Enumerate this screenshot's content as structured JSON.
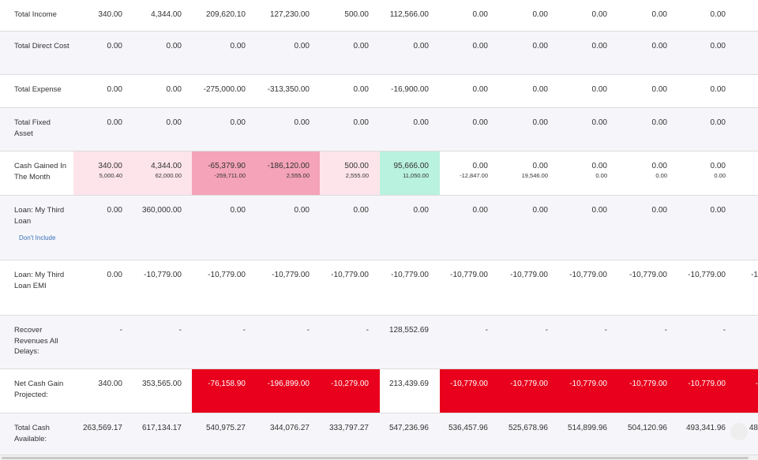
{
  "colors": {
    "shade_row": "#f6f6fa",
    "light_pink": "#fde4ea",
    "medium_pink": "#f4a3b8",
    "mint": "#b9f2de",
    "red": "#e8001c",
    "white": "#ffffff"
  },
  "rows": [
    {
      "id": "total-income",
      "label": "Total Income",
      "shade": false,
      "cells": [
        {
          "value": "340.00"
        },
        {
          "value": "4,344.00"
        },
        {
          "value": "209,620.10"
        },
        {
          "value": "127,230.00"
        },
        {
          "value": "500.00"
        },
        {
          "value": "112,566.00"
        },
        {
          "value": "0.00"
        },
        {
          "value": "0.00"
        },
        {
          "value": "0.00"
        },
        {
          "value": "0.00"
        },
        {
          "value": "0.00"
        }
      ]
    },
    {
      "id": "total-direct-cost",
      "label": "Total Direct Cost",
      "shade": true,
      "cells": [
        {
          "value": "0.00"
        },
        {
          "value": "0.00"
        },
        {
          "value": "0.00"
        },
        {
          "value": "0.00"
        },
        {
          "value": "0.00"
        },
        {
          "value": "0.00"
        },
        {
          "value": "0.00"
        },
        {
          "value": "0.00"
        },
        {
          "value": "0.00"
        },
        {
          "value": "0.00"
        },
        {
          "value": "0.00"
        }
      ]
    },
    {
      "id": "total-expense",
      "label": "Total Expense",
      "shade": false,
      "cells": [
        {
          "value": "0.00"
        },
        {
          "value": "0.00"
        },
        {
          "value": "-275,000.00"
        },
        {
          "value": "-313,350.00"
        },
        {
          "value": "0.00"
        },
        {
          "value": "-16,900.00"
        },
        {
          "value": "0.00"
        },
        {
          "value": "0.00"
        },
        {
          "value": "0.00"
        },
        {
          "value": "0.00"
        },
        {
          "value": "0.00"
        }
      ]
    },
    {
      "id": "total-fixed-asset",
      "label": "Total Fixed Asset",
      "shade": true,
      "cells": [
        {
          "value": "0.00"
        },
        {
          "value": "0.00"
        },
        {
          "value": "0.00"
        },
        {
          "value": "0.00"
        },
        {
          "value": "0.00"
        },
        {
          "value": "0.00"
        },
        {
          "value": "0.00"
        },
        {
          "value": "0.00"
        },
        {
          "value": "0.00"
        },
        {
          "value": "0.00"
        },
        {
          "value": "0.00"
        }
      ]
    },
    {
      "id": "cash-gained",
      "label": "Cash Gained In The Month",
      "shade": false,
      "cells": [
        {
          "value": "340.00",
          "sub": "5,000.40",
          "bg": "light_pink"
        },
        {
          "value": "4,344.00",
          "sub": "62,000.00",
          "bg": "light_pink"
        },
        {
          "value": "-65,379.90",
          "sub": "-259,711.00",
          "bg": "medium_pink"
        },
        {
          "value": "-186,120.00",
          "sub": "2,555.00",
          "bg": "medium_pink"
        },
        {
          "value": "500.00",
          "sub": "2,555.00",
          "bg": "light_pink"
        },
        {
          "value": "95,666.00",
          "sub": "11,050.00",
          "bg": "mint"
        },
        {
          "value": "0.00",
          "sub": "-12,847.00"
        },
        {
          "value": "0.00",
          "sub": "19,546.00"
        },
        {
          "value": "0.00",
          "sub": "0.00"
        },
        {
          "value": "0.00",
          "sub": "0.00"
        },
        {
          "value": "0.00",
          "sub": "0.00"
        }
      ]
    },
    {
      "id": "loan-my-third-loan",
      "label": "Loan: My Third Loan",
      "shade": true,
      "link": "Don't Include",
      "cells": [
        {
          "value": "0.00"
        },
        {
          "value": "360,000.00"
        },
        {
          "value": "0.00"
        },
        {
          "value": "0.00"
        },
        {
          "value": "0.00"
        },
        {
          "value": "0.00"
        },
        {
          "value": "0.00"
        },
        {
          "value": "0.00"
        },
        {
          "value": "0.00"
        },
        {
          "value": "0.00"
        },
        {
          "value": "0.00"
        }
      ]
    },
    {
      "id": "loan-emi",
      "label": "Loan: My Third Loan EMI",
      "shade": false,
      "cells": [
        {
          "value": "0.00"
        },
        {
          "value": "-10,779.00"
        },
        {
          "value": "-10,779.00"
        },
        {
          "value": "-10,779.00"
        },
        {
          "value": "-10,779.00"
        },
        {
          "value": "-10,779.00"
        },
        {
          "value": "-10,779.00"
        },
        {
          "value": "-10,779.00"
        },
        {
          "value": "-10,779.00"
        },
        {
          "value": "-10,779.00"
        },
        {
          "value": "-10,779.00"
        },
        {
          "value": "-1"
        }
      ]
    },
    {
      "id": "recover-revenues",
      "label": "Recover Revenues All Delays:",
      "shade": true,
      "cells": [
        {
          "value": "-"
        },
        {
          "value": "-"
        },
        {
          "value": "-"
        },
        {
          "value": "-"
        },
        {
          "value": "-"
        },
        {
          "value": "128,552.69"
        },
        {
          "value": "-"
        },
        {
          "value": "-"
        },
        {
          "value": "-"
        },
        {
          "value": "-"
        },
        {
          "value": "-"
        }
      ]
    },
    {
      "id": "net-cash-gain",
      "label": "Net Cash Gain Projected:",
      "shade": false,
      "cells": [
        {
          "value": "340.00"
        },
        {
          "value": "353,565.00"
        },
        {
          "value": "-76,158.90",
          "bg": "red"
        },
        {
          "value": "-196,899.00",
          "bg": "red"
        },
        {
          "value": "-10,279.00",
          "bg": "red"
        },
        {
          "value": "213,439.69"
        },
        {
          "value": "-10,779.00",
          "bg": "red"
        },
        {
          "value": "-10,779.00",
          "bg": "red"
        },
        {
          "value": "-10,779.00",
          "bg": "red"
        },
        {
          "value": "-10,779.00",
          "bg": "red"
        },
        {
          "value": "-10,779.00",
          "bg": "red"
        },
        {
          "value": "-",
          "bg": "red"
        }
      ]
    },
    {
      "id": "total-cash-available",
      "label": "Total Cash Available:",
      "shade": true,
      "cells": [
        {
          "value": "263,569.17"
        },
        {
          "value": "617,134.17"
        },
        {
          "value": "540,975.27"
        },
        {
          "value": "344,076.27"
        },
        {
          "value": "333,797.27"
        },
        {
          "value": "547,236.96"
        },
        {
          "value": "536,457.96"
        },
        {
          "value": "525,678.96"
        },
        {
          "value": "514,899.96"
        },
        {
          "value": "504,120.96"
        },
        {
          "value": "493,341.96"
        },
        {
          "value": "48"
        }
      ]
    }
  ]
}
